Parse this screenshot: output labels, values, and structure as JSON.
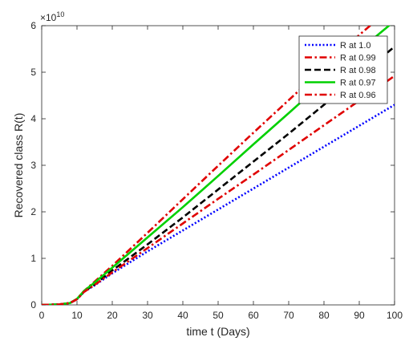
{
  "chart_data": {
    "type": "line",
    "title": "",
    "xlabel": "time t (Days)",
    "ylabel": "Recovered class R(t)",
    "y_exponent_label": "×10",
    "y_exponent_power": "10",
    "y_scale_factor": 10000000000,
    "xlim": [
      0,
      100
    ],
    "ylim": [
      0,
      6
    ],
    "x_ticks": [
      0,
      10,
      20,
      30,
      40,
      50,
      60,
      70,
      80,
      90,
      100
    ],
    "y_ticks": [
      0,
      1,
      2,
      3,
      4,
      5,
      6
    ],
    "grid": false,
    "legend_position": "top-right",
    "x": [
      0,
      5,
      8,
      10,
      12,
      15,
      20,
      30,
      40,
      50,
      60,
      70,
      80,
      90,
      100
    ],
    "series": [
      {
        "name": "R at 1.0",
        "color": "#0000ff",
        "style": "dotted",
        "values": [
          0,
          0.01,
          0.04,
          0.12,
          0.28,
          0.42,
          0.68,
          1.15,
          1.6,
          2.05,
          2.5,
          2.95,
          3.4,
          3.85,
          4.3
        ]
      },
      {
        "name": "R at 0.99",
        "color": "#e00000",
        "style": "dashdot",
        "values": [
          0,
          0.01,
          0.04,
          0.13,
          0.3,
          0.5,
          0.84,
          1.55,
          2.27,
          2.99,
          3.7,
          4.4,
          5.1,
          5.8,
          6.45
        ]
      },
      {
        "name": "R at 0.98",
        "color": "#000000",
        "style": "dashed",
        "values": [
          0,
          0.01,
          0.04,
          0.12,
          0.29,
          0.44,
          0.74,
          1.3,
          1.88,
          2.48,
          3.08,
          3.68,
          4.3,
          4.92,
          5.55
        ]
      },
      {
        "name": "R at 0.97",
        "color": "#00d000",
        "style": "solid",
        "values": [
          0,
          0.01,
          0.04,
          0.13,
          0.3,
          0.48,
          0.8,
          1.45,
          2.1,
          2.77,
          3.45,
          4.12,
          4.8,
          5.47,
          6.1
        ]
      },
      {
        "name": "R at 0.96",
        "color": "#e00000",
        "style": "dashdot",
        "values": [
          0,
          0.01,
          0.04,
          0.12,
          0.28,
          0.43,
          0.7,
          1.22,
          1.75,
          2.28,
          2.8,
          3.33,
          3.86,
          4.39,
          4.92
        ]
      }
    ]
  }
}
